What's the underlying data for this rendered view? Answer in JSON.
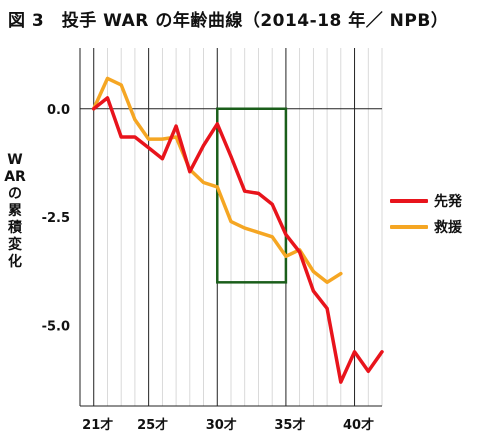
{
  "title": "図 3　投手 WAR の年齢曲線（2014-18 年／ NPB）",
  "chart_data": {
    "type": "line",
    "title": "図 3　投手 WAR の年齢曲線（2014-18 年／ NPB）",
    "ylabel": "WARの累積変化",
    "xlabel": "",
    "xlim": [
      20,
      42
    ],
    "ylim": [
      -6.85,
      1.4
    ],
    "x_ticks": [
      {
        "value": 21,
        "label": "21才"
      },
      {
        "value": 25,
        "label": "25才"
      },
      {
        "value": 30,
        "label": "30才"
      },
      {
        "value": 35,
        "label": "35才"
      },
      {
        "value": 40,
        "label": "40才"
      }
    ],
    "y_ticks": [
      {
        "value": 0,
        "label": "0.0"
      },
      {
        "value": -2.5,
        "label": "-2.5"
      },
      {
        "value": -5,
        "label": "-5.0"
      }
    ],
    "grid": "vertical",
    "legend_position": "right",
    "series": [
      {
        "name": "先発",
        "color": "#e8141c",
        "x": [
          21,
          22,
          23,
          24,
          25,
          26,
          27,
          28,
          29,
          30,
          31,
          32,
          33,
          34,
          35,
          36,
          37,
          38,
          39,
          40,
          41,
          42
        ],
        "y": [
          0.0,
          0.25,
          -0.65,
          -0.65,
          -0.9,
          -1.15,
          -0.4,
          -1.45,
          -0.85,
          -0.35,
          -1.1,
          -1.9,
          -1.95,
          -2.2,
          -2.9,
          -3.3,
          -4.2,
          -4.6,
          -6.3,
          -5.6,
          -6.05,
          -5.6
        ]
      },
      {
        "name": "救援",
        "color": "#f5a623",
        "x": [
          21,
          22,
          23,
          24,
          25,
          26,
          27,
          28,
          29,
          30,
          31,
          32,
          33,
          34,
          35,
          36,
          37,
          38,
          39
        ],
        "y": [
          0.0,
          0.7,
          0.55,
          -0.25,
          -0.7,
          -0.7,
          -0.65,
          -1.4,
          -1.7,
          -1.8,
          -2.6,
          -2.75,
          -2.85,
          -2.95,
          -3.4,
          -3.25,
          -3.75,
          -4.0,
          -3.8
        ]
      }
    ],
    "annotations": [
      {
        "type": "rect",
        "color": "#1a5e1a",
        "x_range": [
          30,
          35
        ],
        "y_range": [
          -4.0,
          0.0
        ]
      }
    ]
  }
}
